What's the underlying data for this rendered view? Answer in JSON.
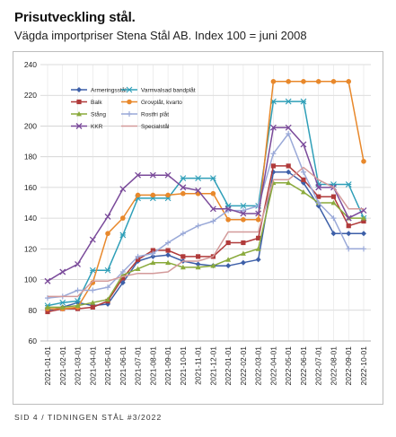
{
  "header": {
    "title": "Prisutveckling stål.",
    "subtitle": "Vägda importpriser Stena Stål AB. Index 100 = juni 2008"
  },
  "footer": {
    "text": "SID 4 / TIDNINGEN STÅL #3/2022"
  },
  "chart_data": {
    "type": "line",
    "title": "",
    "xlabel": "",
    "ylabel": "",
    "ylim": [
      60,
      240
    ],
    "yticks": [
      60,
      80,
      100,
      120,
      140,
      160,
      180,
      200,
      220,
      240
    ],
    "grid": true,
    "legend_position": "top-left",
    "x": [
      "2021-01-01",
      "2021-02-01",
      "2021-03-01",
      "2021-04-01",
      "2021-05-01",
      "2021-06-01",
      "2021-07-01",
      "2021-08-01",
      "2021-09-01",
      "2021-10-01",
      "2021-11-01",
      "2021-12-01",
      "2022-01-01",
      "2022-02-01",
      "2022-03-01",
      "2022-04-01",
      "2022-05-01",
      "2022-06-01",
      "2022-07-01",
      "2022-08-01",
      "2022-09-01",
      "2022-10-01"
    ],
    "series": [
      {
        "name": "Armeringsstål",
        "color": "#3d5fa8",
        "marker": "diamond",
        "values": [
          80,
          82,
          85,
          83,
          84,
          98,
          112,
          115,
          116,
          112,
          110,
          109,
          109,
          111,
          113,
          170,
          170,
          163,
          148,
          130,
          130,
          130
        ]
      },
      {
        "name": "Varmvalsad bandplåt",
        "color": "#2f9fb8",
        "marker": "asterisk",
        "values": [
          83,
          85,
          86,
          106,
          106,
          129,
          153,
          153,
          153,
          166,
          166,
          166,
          148,
          148,
          148,
          216,
          216,
          216,
          162,
          162,
          162,
          140
        ]
      },
      {
        "name": "Balk",
        "color": "#b03a3a",
        "marker": "square",
        "values": [
          79,
          81,
          81,
          82,
          86,
          101,
          113,
          119,
          119,
          115,
          115,
          115,
          124,
          124,
          127,
          174,
          174,
          165,
          154,
          154,
          135,
          138
        ]
      },
      {
        "name": "Grovplåt, kvarto",
        "color": "#e8882b",
        "marker": "circle",
        "values": [
          81,
          81,
          82,
          98,
          130,
          140,
          155,
          155,
          155,
          156,
          156,
          156,
          139,
          139,
          139,
          229,
          229,
          229,
          229,
          229,
          229,
          177
        ]
      },
      {
        "name": "Stång",
        "color": "#8aaa3c",
        "marker": "triangle",
        "values": [
          82,
          82,
          83,
          85,
          87,
          103,
          107,
          111,
          111,
          108,
          108,
          109,
          113,
          117,
          120,
          163,
          163,
          157,
          150,
          150,
          140,
          140
        ]
      },
      {
        "name": "Rostfri plåt",
        "color": "#9aa9d8",
        "marker": "plus",
        "values": [
          88,
          89,
          93,
          93,
          95,
          105,
          115,
          117,
          124,
          130,
          135,
          138,
          145,
          145,
          148,
          182,
          195,
          170,
          150,
          140,
          120,
          120
        ]
      },
      {
        "name": "KKR",
        "color": "#7a4a9a",
        "marker": "x",
        "values": [
          99,
          105,
          110,
          126,
          141,
          159,
          168,
          168,
          168,
          160,
          158,
          146,
          146,
          143,
          143,
          199,
          199,
          188,
          160,
          160,
          140,
          145
        ]
      },
      {
        "name": "Specialstål",
        "color": "#d39a9a",
        "marker": "none",
        "values": [
          89,
          89,
          89,
          99,
          99,
          102,
          104,
          104,
          105,
          112,
          112,
          115,
          131,
          131,
          131,
          165,
          165,
          173,
          165,
          160,
          146,
          146
        ]
      }
    ]
  }
}
